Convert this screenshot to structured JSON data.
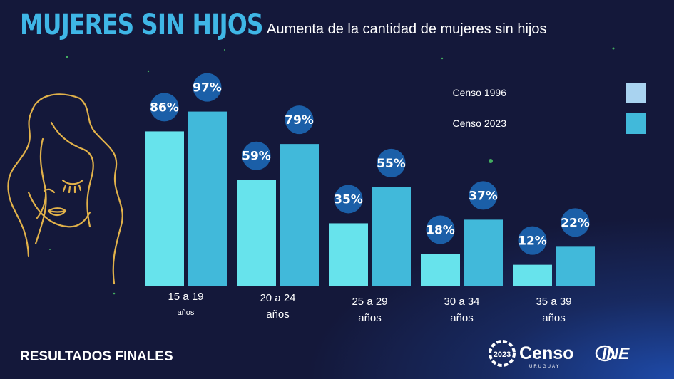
{
  "header": {
    "title": "MUJERES SIN HIJOS",
    "subtitle": "Aumenta de la cantidad de mujeres sin hijos"
  },
  "footer": {
    "label": "RESULTADOS FINALES"
  },
  "logos": {
    "censo_mark": "2023",
    "censo_word": "Censo",
    "censo_sub": "URUGUAY",
    "ine_word": "INE"
  },
  "colors": {
    "background": "#14183a",
    "title": "#3fb6e6",
    "series_1996": "#67e3ec",
    "series_2023": "#41b9da",
    "label_badge": "#1b5fa8"
  },
  "chart_data": {
    "type": "bar",
    "categories": [
      [
        "15 a 19",
        "años"
      ],
      [
        "20 a 24",
        "años"
      ],
      [
        "25 a 29",
        "años"
      ],
      [
        "30 a 34",
        "años"
      ],
      [
        "35 a 39",
        "años"
      ]
    ],
    "series": [
      {
        "name": "Censo 1996",
        "values": [
          86,
          59,
          35,
          18,
          12
        ],
        "labels": [
          "86%",
          "59%",
          "35%",
          "18%",
          "12%"
        ]
      },
      {
        "name": "Censo 2023",
        "values": [
          97,
          79,
          55,
          37,
          22
        ],
        "labels": [
          "97%",
          "79%",
          "55%",
          "37%",
          "22%"
        ]
      }
    ],
    "legend_colors": [
      "#a9d3f0",
      "#41b9da"
    ],
    "ylim": [
      0,
      100
    ],
    "grid": false,
    "legend_position": "right"
  }
}
